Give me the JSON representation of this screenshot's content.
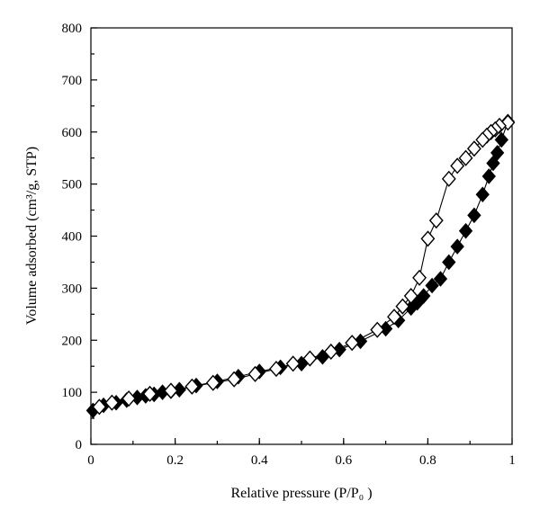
{
  "chart_data": {
    "type": "scatter",
    "title": "",
    "xlabel": "Relative pressure (P/P₀ )",
    "ylabel": "Volume adsorbed (cm³/g, STP)",
    "xlim": [
      0,
      1
    ],
    "ylim": [
      0,
      800
    ],
    "x_ticks": [
      "0",
      "0.2",
      "0.4",
      "0.6",
      "0.8",
      "1"
    ],
    "y_ticks": [
      "0",
      "100",
      "200",
      "300",
      "400",
      "500",
      "600",
      "700",
      "800"
    ],
    "x_tick_values": [
      0,
      0.2,
      0.4,
      0.6,
      0.8,
      1.0
    ],
    "y_tick_values": [
      0,
      100,
      200,
      300,
      400,
      500,
      600,
      700,
      800
    ],
    "x_minor_step": 0.1,
    "y_minor_step": 50,
    "grid": false,
    "legend": "none",
    "series": [
      {
        "marker": "filled-diamond",
        "color": "#000000",
        "x": [
          0.005,
          0.03,
          0.06,
          0.085,
          0.11,
          0.13,
          0.15,
          0.17,
          0.19,
          0.21,
          0.25,
          0.3,
          0.35,
          0.4,
          0.45,
          0.5,
          0.55,
          0.59,
          0.64,
          0.7,
          0.73,
          0.76,
          0.775,
          0.79,
          0.81,
          0.83,
          0.85,
          0.87,
          0.89,
          0.91,
          0.93,
          0.945,
          0.955,
          0.965,
          0.975,
          0.99
        ],
        "y": [
          65,
          75,
          80,
          85,
          90,
          93,
          96,
          100,
          102,
          105,
          113,
          121,
          130,
          140,
          148,
          155,
          168,
          182,
          198,
          222,
          238,
          262,
          272,
          285,
          305,
          318,
          350,
          380,
          410,
          440,
          480,
          515,
          540,
          560,
          585,
          620
        ]
      },
      {
        "marker": "open-diamond",
        "color": "#000000",
        "x": [
          0.99,
          0.97,
          0.96,
          0.95,
          0.94,
          0.93,
          0.91,
          0.89,
          0.87,
          0.85,
          0.82,
          0.8,
          0.78,
          0.76,
          0.74,
          0.72,
          0.68,
          0.62,
          0.57,
          0.52,
          0.48,
          0.44,
          0.39,
          0.34,
          0.29,
          0.24,
          0.19,
          0.14,
          0.09,
          0.05,
          0.02
        ],
        "y": [
          618,
          612,
          605,
          600,
          593,
          585,
          568,
          550,
          535,
          510,
          430,
          395,
          320,
          285,
          265,
          245,
          220,
          195,
          178,
          165,
          155,
          145,
          135,
          125,
          118,
          111,
          103,
          97,
          88,
          80,
          72
        ]
      }
    ]
  }
}
